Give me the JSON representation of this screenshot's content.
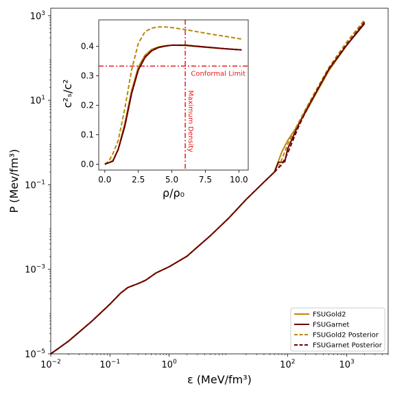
{
  "chart_data": [
    {
      "type": "line",
      "xlabel": "ε (MeV/fm³)",
      "ylabel": "P (Mev/fm³)",
      "xscale": "log",
      "yscale": "log",
      "xlim": [
        0.01,
        5000
      ],
      "ylim": [
        1e-05,
        1500
      ],
      "xticks": [
        {
          "value": 0.01,
          "base": "10",
          "exp": "−2"
        },
        {
          "value": 0.1,
          "base": "10",
          "exp": "−1"
        },
        {
          "value": 1,
          "base": "10",
          "exp": "0"
        },
        {
          "value": 100,
          "base": "10",
          "exp": "2"
        },
        {
          "value": 1000,
          "base": "10",
          "exp": "3"
        }
      ],
      "yticks": [
        {
          "value": 1e-05,
          "base": "10",
          "exp": "−5"
        },
        {
          "value": 0.001,
          "base": "10",
          "exp": "−3"
        },
        {
          "value": 0.1,
          "base": "10",
          "exp": "−1"
        },
        {
          "value": 10,
          "base": "10",
          "exp": "1"
        },
        {
          "value": 1000,
          "base": "10",
          "exp": "3"
        }
      ],
      "legend_position": "bottom-right",
      "series": [
        {
          "name": "FSUGold2",
          "color": "#b8860b",
          "dash": "solid",
          "x": [
            0.01,
            0.02,
            0.05,
            0.1,
            0.15,
            0.2,
            0.3,
            0.4,
            0.6,
            1,
            2,
            5,
            10,
            20,
            40,
            60,
            80,
            100,
            150,
            200,
            300,
            500,
            1000,
            2000
          ],
          "y": [
            1e-05,
            2e-05,
            6e-05,
            0.00015,
            0.00027,
            0.00037,
            0.00046,
            0.00055,
            0.00082,
            0.00115,
            0.00204,
            0.0063,
            0.0159,
            0.045,
            0.116,
            0.2,
            0.6,
            1.1,
            2.6,
            5,
            14,
            50,
            200,
            720
          ]
        },
        {
          "name": "FSUGarnet",
          "color": "#6b0000",
          "dash": "solid",
          "x": [
            0.01,
            0.02,
            0.05,
            0.1,
            0.15,
            0.2,
            0.3,
            0.4,
            0.6,
            1,
            2,
            5,
            10,
            20,
            40,
            60,
            70,
            80,
            90,
            100,
            150,
            200,
            300,
            500,
            1000,
            2000
          ],
          "y": [
            1e-05,
            2e-05,
            6e-05,
            0.00015,
            0.00027,
            0.00037,
            0.00046,
            0.00055,
            0.00082,
            0.00115,
            0.00204,
            0.0063,
            0.0159,
            0.045,
            0.116,
            0.2,
            0.34,
            0.34,
            0.35,
            0.7,
            2.5,
            5.5,
            15,
            55,
            200,
            650
          ]
        },
        {
          "name": "FSUGold2 Posterior",
          "color": "#b8860b",
          "dash": "dashed",
          "x": [
            0.01,
            0.02,
            0.05,
            0.1,
            0.15,
            0.2,
            0.3,
            0.4,
            0.6,
            1,
            2,
            5,
            10,
            20,
            40,
            60,
            70,
            80,
            100,
            150,
            200,
            300,
            500,
            1000,
            2000
          ],
          "y": [
            1e-05,
            2e-05,
            6e-05,
            0.00015,
            0.00027,
            0.00037,
            0.00046,
            0.00055,
            0.00082,
            0.00115,
            0.00204,
            0.0063,
            0.0159,
            0.045,
            0.116,
            0.2,
            0.25,
            0.4,
            0.9,
            2.8,
            6,
            17,
            60,
            240,
            800
          ]
        },
        {
          "name": "FSUGarnet Posterior",
          "color": "#6b0000",
          "dash": "dashed",
          "x": [
            0.01,
            0.02,
            0.05,
            0.1,
            0.15,
            0.2,
            0.3,
            0.4,
            0.6,
            1,
            2,
            5,
            10,
            20,
            40,
            60,
            70,
            80,
            100,
            150,
            200,
            300,
            500,
            1000,
            2000
          ],
          "y": [
            1e-05,
            2e-05,
            6e-05,
            0.00015,
            0.00027,
            0.00037,
            0.00046,
            0.00055,
            0.00082,
            0.00115,
            0.00204,
            0.0063,
            0.0159,
            0.045,
            0.116,
            0.2,
            0.25,
            0.3,
            0.55,
            2.2,
            5.2,
            15,
            55,
            210,
            700
          ]
        }
      ]
    },
    {
      "type": "line",
      "inset": true,
      "xlabel": "ρ/ρ₀",
      "ylabel": "c²ₛ/c²",
      "xlim": [
        -0.45,
        10.7
      ],
      "ylim": [
        -0.02,
        0.49
      ],
      "xticks": [
        "0.0",
        "2.5",
        "5.0",
        "7.5",
        "10.0"
      ],
      "yticks": [
        "0.0",
        "0.1",
        "0.2",
        "0.3",
        "0.4"
      ],
      "reference_lines": [
        {
          "orientation": "horizontal",
          "value": 0.333,
          "label": "Conformal Limit",
          "color": "#e41a1c"
        },
        {
          "orientation": "vertical",
          "value": 6.0,
          "label": "Maximum Density",
          "color": "#e41a1c"
        }
      ],
      "series": [
        {
          "name": "FSUGold2",
          "color": "#b8860b",
          "dash": "solid",
          "x": [
            0,
            0.3,
            0.6,
            1.0,
            1.5,
            2.0,
            2.5,
            3.0,
            3.5,
            4.0,
            4.5,
            5.0,
            6.0,
            7.0,
            8.0,
            9.0,
            10.2
          ],
          "y": [
            0,
            0.005,
            0.012,
            0.05,
            0.14,
            0.25,
            0.33,
            0.37,
            0.39,
            0.398,
            0.402,
            0.404,
            0.403,
            0.399,
            0.395,
            0.392,
            0.388
          ]
        },
        {
          "name": "FSUGarnet",
          "color": "#6b0000",
          "dash": "solid",
          "x": [
            0,
            0.3,
            0.6,
            1.0,
            1.5,
            2.0,
            2.5,
            3.0,
            3.5,
            4.0,
            4.5,
            5.0,
            6.0,
            7.0,
            8.0,
            9.0,
            10.2
          ],
          "y": [
            0,
            0.005,
            0.01,
            0.05,
            0.13,
            0.24,
            0.32,
            0.362,
            0.385,
            0.396,
            0.401,
            0.404,
            0.404,
            0.4,
            0.396,
            0.392,
            0.388
          ]
        },
        {
          "name": "FSUGold2 Posterior",
          "color": "#b8860b",
          "dash": "dashed",
          "x": [
            0,
            0.3,
            0.6,
            1.0,
            1.5,
            2.0,
            2.5,
            3.0,
            3.5,
            4.0,
            4.5,
            5.0,
            6.0,
            7.0,
            8.0,
            9.0,
            10.2
          ],
          "y": [
            0,
            0.01,
            0.035,
            0.08,
            0.19,
            0.32,
            0.41,
            0.45,
            0.462,
            0.466,
            0.466,
            0.464,
            0.457,
            0.449,
            0.441,
            0.434,
            0.425
          ]
        },
        {
          "name": "FSUGarnet Posterior",
          "color": "#6b0000",
          "dash": "dashed",
          "x": [
            0,
            0.3,
            0.6,
            1.0,
            1.5,
            2.0,
            2.5,
            3.0,
            3.5,
            4.0,
            4.5,
            5.0,
            6.0,
            7.0,
            8.0,
            9.0,
            10.2
          ],
          "y": [
            0,
            0.005,
            0.01,
            0.05,
            0.13,
            0.24,
            0.32,
            0.364,
            0.386,
            0.397,
            0.401,
            0.404,
            0.404,
            0.4,
            0.396,
            0.392,
            0.388
          ]
        }
      ]
    }
  ]
}
